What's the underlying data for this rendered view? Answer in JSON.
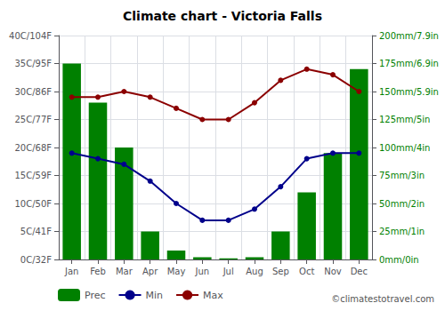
{
  "chart_data": {
    "type": "bar",
    "title": "Climate chart - Victoria Falls",
    "categories": [
      "Jan",
      "Feb",
      "Mar",
      "Apr",
      "May",
      "Jun",
      "Jul",
      "Aug",
      "Sep",
      "Oct",
      "Nov",
      "Dec"
    ],
    "series": [
      {
        "name": "Prec",
        "type": "bar",
        "axis": "y2",
        "color": "#008000",
        "values": [
          175,
          140,
          100,
          25,
          8,
          2,
          1,
          2,
          25,
          60,
          95,
          170
        ]
      },
      {
        "name": "Min",
        "type": "line",
        "marker": "circle",
        "line_style": "solid",
        "color": "#00008B",
        "values": [
          19,
          18,
          17,
          14,
          10,
          7,
          7,
          9,
          13,
          18,
          19,
          19
        ]
      },
      {
        "name": "Max",
        "type": "line",
        "marker": "circle",
        "line_style": "solid",
        "color": "#8B0000",
        "values": [
          29,
          29,
          30,
          29,
          27,
          25,
          25,
          28,
          32,
          34,
          33,
          30
        ]
      }
    ],
    "ylim": [
      0,
      40
    ],
    "yticks": [
      {
        "value": 0,
        "label": "0C/32F"
      },
      {
        "value": 5,
        "label": "5C/41F"
      },
      {
        "value": 10,
        "label": "10C/50F"
      },
      {
        "value": 15,
        "label": "15C/59F"
      },
      {
        "value": 20,
        "label": "20C/68F"
      },
      {
        "value": 25,
        "label": "25C/77F"
      },
      {
        "value": 30,
        "label": "30C/86F"
      },
      {
        "value": 35,
        "label": "35C/95F"
      },
      {
        "value": 40,
        "label": "40C/104F"
      }
    ],
    "y2lim": [
      0,
      200
    ],
    "y2ticks": [
      {
        "value": 0,
        "label": "0mm/0in"
      },
      {
        "value": 25,
        "label": "25mm/1in"
      },
      {
        "value": 50,
        "label": "50mm/2in"
      },
      {
        "value": 75,
        "label": "75mm/3in"
      },
      {
        "value": 100,
        "label": "100mm/4in"
      },
      {
        "value": 125,
        "label": "125mm/5in"
      },
      {
        "value": 150,
        "label": "150mm/5.9in"
      },
      {
        "value": 175,
        "label": "175mm/6.9in"
      },
      {
        "value": 200,
        "label": "200mm/7.9in"
      }
    ],
    "grid": true,
    "legend": "bottom",
    "annotation": "©climatestotravel.com"
  }
}
